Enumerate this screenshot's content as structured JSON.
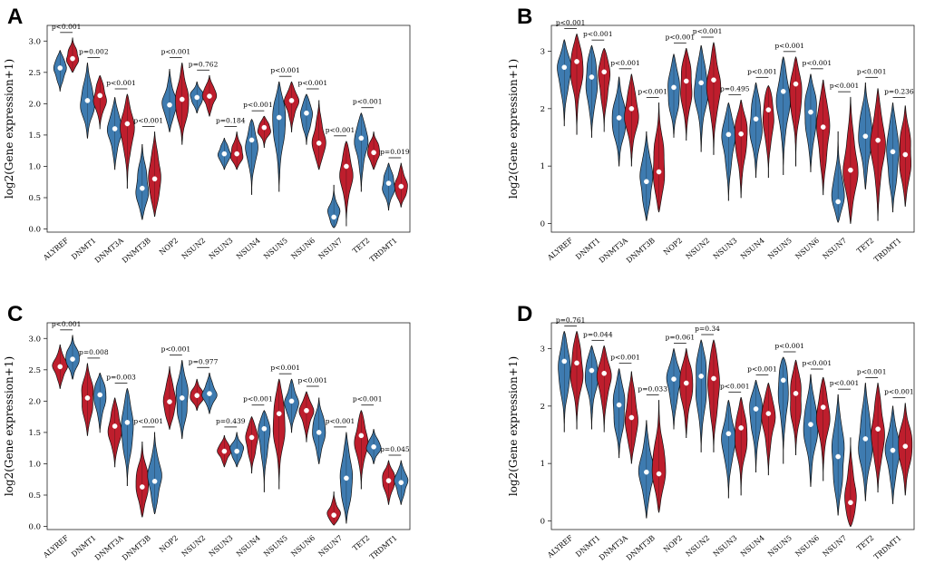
{
  "colors": {
    "blue": "#3E7BB0",
    "red": "#BE1E2D",
    "outline": "#111111",
    "median": "#ffffff"
  },
  "chart_data": [
    {
      "panel": "A",
      "type": "violin",
      "ylabel": "log2(Gene expression+1)",
      "ylim": [
        -0.05,
        3.25
      ],
      "yticks": [
        "0.0",
        "0.5",
        "1.0",
        "1.5",
        "2.0",
        "2.5",
        "3.0"
      ],
      "categories": [
        "ALYREF",
        "DNMT1",
        "DNMT3A",
        "DNMT3B",
        "NOP2",
        "NSUN2",
        "NSUN3",
        "NSUN4",
        "NSUN5",
        "NSUN6",
        "NSUN7",
        "TET2",
        "TRDMT1"
      ],
      "pvalues": [
        "p<0.001",
        "p=0.002",
        "p<0.001",
        "p<0.001",
        "p<0.001",
        "p=0.762",
        "p=0.184",
        "p<0.001",
        "p<0.001",
        "p<0.001",
        "p<0.001",
        "p<0.001",
        "p=0.019"
      ],
      "series": [
        {
          "name": "group1",
          "color": "blue",
          "medians": [
            2.57,
            2.05,
            1.6,
            0.65,
            1.98,
            2.1,
            1.2,
            1.42,
            1.78,
            1.85,
            0.19,
            1.45,
            0.73
          ],
          "ranges": [
            [
              2.2,
              2.85
            ],
            [
              1.45,
              2.65
            ],
            [
              0.95,
              2.1
            ],
            [
              0.15,
              1.35
            ],
            [
              1.55,
              2.55
            ],
            [
              1.85,
              2.35
            ],
            [
              0.95,
              1.45
            ],
            [
              0.55,
              1.75
            ],
            [
              0.6,
              2.35
            ],
            [
              1.35,
              2.15
            ],
            [
              0.02,
              0.7
            ],
            [
              0.6,
              1.85
            ],
            [
              0.3,
              1.05
            ]
          ]
        },
        {
          "name": "group2",
          "color": "red",
          "medians": [
            2.72,
            2.13,
            1.68,
            0.8,
            2.07,
            2.12,
            1.2,
            1.62,
            2.05,
            1.37,
            1.0,
            1.22,
            0.68
          ],
          "ranges": [
            [
              2.5,
              3.05
            ],
            [
              1.6,
              2.45
            ],
            [
              0.65,
              2.15
            ],
            [
              0.2,
              1.55
            ],
            [
              1.35,
              2.65
            ],
            [
              1.8,
              2.45
            ],
            [
              0.95,
              1.55
            ],
            [
              1.3,
              1.8
            ],
            [
              1.55,
              2.35
            ],
            [
              0.95,
              2.05
            ],
            [
              0.05,
              1.4
            ],
            [
              0.95,
              1.55
            ],
            [
              0.35,
              1.05
            ]
          ]
        }
      ]
    },
    {
      "panel": "B",
      "type": "violin",
      "ylabel": "log2(Gene expression+1)",
      "ylim": [
        -0.15,
        3.45
      ],
      "yticks": [
        "0",
        "1",
        "2",
        "3"
      ],
      "categories": [
        "ALYREF",
        "DNMT1",
        "DNMT3A",
        "DNMT3B",
        "NOP2",
        "NSUN2",
        "NSUN3",
        "NSUN4",
        "NSUN5",
        "NSUN6",
        "NSUN7",
        "TET2",
        "TRDMT1"
      ],
      "pvalues": [
        "p<0.001",
        "p<0.001",
        "p<0.001",
        "p<0.001",
        "p<0.001",
        "p<0.001",
        "p=0.495",
        "p<0.001",
        "p<0.001",
        "p<0.001",
        "p<0.001",
        "p<0.001",
        "p=0.236"
      ],
      "series": [
        {
          "name": "group1",
          "color": "blue",
          "medians": [
            2.72,
            2.55,
            1.84,
            0.73,
            2.37,
            2.45,
            1.55,
            1.82,
            2.3,
            1.94,
            0.38,
            1.52,
            1.25
          ],
          "ranges": [
            [
              1.7,
              3.2
            ],
            [
              1.5,
              3.1
            ],
            [
              1.0,
              2.55
            ],
            [
              0.05,
              1.6
            ],
            [
              1.5,
              2.95
            ],
            [
              1.25,
              3.1
            ],
            [
              0.4,
              2.1
            ],
            [
              0.8,
              2.45
            ],
            [
              0.85,
              2.9
            ],
            [
              0.9,
              2.6
            ],
            [
              0.02,
              1.6
            ],
            [
              0.6,
              2.45
            ],
            [
              0.2,
              2.1
            ]
          ]
        },
        {
          "name": "group2",
          "color": "red",
          "medians": [
            2.82,
            2.64,
            2.0,
            0.9,
            2.48,
            2.5,
            1.56,
            1.98,
            2.43,
            1.68,
            0.93,
            1.45,
            1.2
          ],
          "ranges": [
            [
              1.55,
              3.3
            ],
            [
              1.6,
              3.05
            ],
            [
              1.0,
              2.6
            ],
            [
              0.2,
              2.1
            ],
            [
              1.45,
              3.05
            ],
            [
              1.2,
              3.15
            ],
            [
              0.45,
              2.15
            ],
            [
              0.8,
              2.4
            ],
            [
              1.0,
              2.9
            ],
            [
              0.5,
              2.5
            ],
            [
              0.0,
              2.2
            ],
            [
              0.05,
              2.35
            ],
            [
              0.3,
              2.05
            ]
          ]
        }
      ]
    },
    {
      "panel": "C",
      "type": "violin",
      "ylabel": "log2(Gene expression+1)",
      "ylim": [
        -0.05,
        3.25
      ],
      "yticks": [
        "0.0",
        "0.5",
        "1.0",
        "1.5",
        "2.0",
        "2.5",
        "3.0"
      ],
      "categories": [
        "ALYREF",
        "DNMT1",
        "DNMT3A",
        "DNMT3B",
        "NOP2",
        "NSUN2",
        "NSUN3",
        "NSUN4",
        "NSUN5",
        "NSUN6",
        "NSUN7",
        "TET2",
        "TRDMT1"
      ],
      "pvalues": [
        "p<0.001",
        "p=0.008",
        "p=0.003",
        "p<0.001",
        "p<0.001",
        "p=0.977",
        "p=0.439",
        "p<0.001",
        "p<0.001",
        "p<0.001",
        "p<0.001",
        "p<0.001",
        "p=0.045"
      ],
      "series": [
        {
          "name": "group1",
          "color": "red",
          "medians": [
            2.55,
            2.05,
            1.6,
            0.63,
            1.99,
            2.09,
            1.2,
            1.42,
            1.8,
            1.85,
            0.18,
            1.45,
            0.73
          ],
          "ranges": [
            [
              2.2,
              2.9
            ],
            [
              1.45,
              2.6
            ],
            [
              0.95,
              2.05
            ],
            [
              0.15,
              1.35
            ],
            [
              1.55,
              2.55
            ],
            [
              1.85,
              2.35
            ],
            [
              0.95,
              1.45
            ],
            [
              0.85,
              1.75
            ],
            [
              0.6,
              2.35
            ],
            [
              1.35,
              2.15
            ],
            [
              0.02,
              0.55
            ],
            [
              0.6,
              1.85
            ],
            [
              0.35,
              1.05
            ]
          ]
        },
        {
          "name": "group2",
          "color": "blue",
          "medians": [
            2.67,
            2.1,
            1.66,
            0.72,
            2.05,
            2.12,
            1.2,
            1.56,
            2.0,
            1.5,
            0.77,
            1.27,
            0.7
          ],
          "ranges": [
            [
              2.35,
              3.05
            ],
            [
              1.5,
              2.45
            ],
            [
              0.65,
              2.2
            ],
            [
              0.2,
              1.5
            ],
            [
              1.4,
              2.65
            ],
            [
              1.8,
              2.45
            ],
            [
              0.95,
              1.5
            ],
            [
              0.55,
              1.85
            ],
            [
              1.5,
              2.35
            ],
            [
              1.0,
              2.05
            ],
            [
              0.05,
              1.5
            ],
            [
              1.0,
              1.55
            ],
            [
              0.35,
              1.05
            ]
          ]
        }
      ]
    },
    {
      "panel": "D",
      "type": "violin",
      "ylabel": "log2(Gene expression+1)",
      "ylim": [
        -0.15,
        3.45
      ],
      "yticks": [
        "0",
        "1",
        "2",
        "3"
      ],
      "categories": [
        "ALYREF",
        "DNMT1",
        "DNMT3A",
        "DNMT3B",
        "NOP2",
        "NSUN2",
        "NSUN3",
        "NSUN4",
        "NSUN5",
        "NSUN6",
        "NSUN7",
        "TET2",
        "TRDMT1"
      ],
      "pvalues": [
        "p=0.761",
        "p=0.044",
        "p<0.001",
        "p=0.033",
        "p=0.061",
        "p=0.34",
        "p<0.001",
        "p<0.001",
        "p<0.001",
        "p<0.001",
        "p<0.001",
        "p<0.001",
        "p<0.001"
      ],
      "series": [
        {
          "name": "group1",
          "color": "blue",
          "medians": [
            2.78,
            2.62,
            2.02,
            0.85,
            2.47,
            2.52,
            1.52,
            1.95,
            2.45,
            1.68,
            1.12,
            1.43,
            1.23
          ],
          "ranges": [
            [
              1.55,
              3.3
            ],
            [
              1.6,
              3.05
            ],
            [
              1.1,
              2.65
            ],
            [
              0.05,
              1.75
            ],
            [
              1.6,
              3.0
            ],
            [
              1.2,
              3.15
            ],
            [
              0.4,
              2.1
            ],
            [
              0.85,
              2.45
            ],
            [
              1.0,
              2.85
            ],
            [
              0.6,
              2.55
            ],
            [
              0.1,
              2.2
            ],
            [
              0.35,
              2.4
            ],
            [
              0.3,
              2.0
            ]
          ]
        },
        {
          "name": "group2",
          "color": "red",
          "medians": [
            2.75,
            2.57,
            1.8,
            0.82,
            2.4,
            2.48,
            1.62,
            1.87,
            2.22,
            1.98,
            0.32,
            1.6,
            1.3
          ],
          "ranges": [
            [
              1.6,
              3.3
            ],
            [
              1.55,
              3.05
            ],
            [
              1.0,
              2.6
            ],
            [
              0.15,
              2.1
            ],
            [
              1.45,
              3.0
            ],
            [
              1.2,
              3.15
            ],
            [
              0.45,
              2.15
            ],
            [
              0.8,
              2.4
            ],
            [
              1.15,
              2.8
            ],
            [
              0.7,
              2.5
            ],
            [
              -0.1,
              1.45
            ],
            [
              0.5,
              2.4
            ],
            [
              0.45,
              2.05
            ]
          ]
        }
      ]
    }
  ]
}
